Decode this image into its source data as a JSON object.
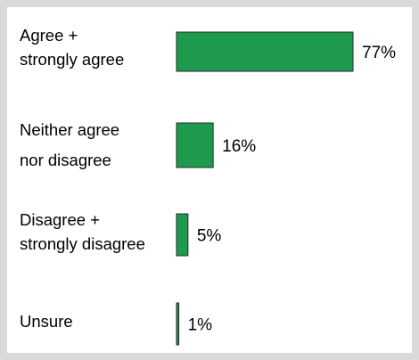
{
  "chart_data": {
    "type": "bar",
    "orientation": "horizontal",
    "categories": [
      "Agree +\nstrongly agree",
      "Neither agree\nnor disagree",
      "Disagree +\nstrongly disagree",
      "Unsure"
    ],
    "values": [
      77,
      16,
      5,
      1
    ],
    "value_labels": [
      "77%",
      "16%",
      "5%",
      "1%"
    ],
    "bar_color": "#1e9a4c",
    "title": "",
    "xlabel": "",
    "ylabel": ""
  }
}
